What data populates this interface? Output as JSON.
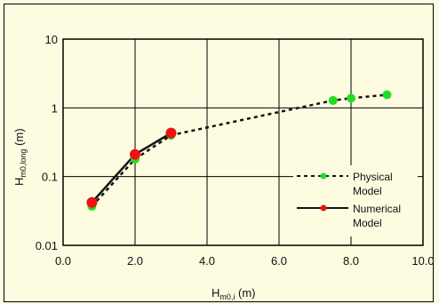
{
  "chart_data": {
    "type": "line",
    "xlabel": {
      "main": "H",
      "sub": "m0,i",
      "unit": " (m)"
    },
    "ylabel": {
      "main": "H",
      "sub": "m0,long",
      "unit": " (m)"
    },
    "xlim": [
      0,
      10
    ],
    "ylim": [
      0.01,
      10
    ],
    "y_scale": "log",
    "x_ticks": [
      "0.0",
      "2.0",
      "4.0",
      "6.0",
      "8.0",
      "10.0"
    ],
    "y_ticks": [
      "0.01",
      "0.1",
      "1",
      "10"
    ],
    "grid": true,
    "legend_position": "right",
    "series": [
      {
        "name": "Physical Model",
        "name_lines": [
          "Physical",
          "Model"
        ],
        "color": "#22dd22",
        "line_style": "dashed",
        "line_color": "#111111",
        "x": [
          0.8,
          2.0,
          3.0,
          7.5,
          8.0,
          9.0
        ],
        "y": [
          0.037,
          0.18,
          0.4,
          1.28,
          1.38,
          1.55
        ]
      },
      {
        "name": "Numerical Model",
        "name_lines": [
          "Numerical",
          "Model"
        ],
        "color": "#ee1111",
        "line_style": "solid",
        "line_color": "#111111",
        "x": [
          0.8,
          2.0,
          3.0
        ],
        "y": [
          0.042,
          0.21,
          0.43
        ]
      }
    ]
  }
}
